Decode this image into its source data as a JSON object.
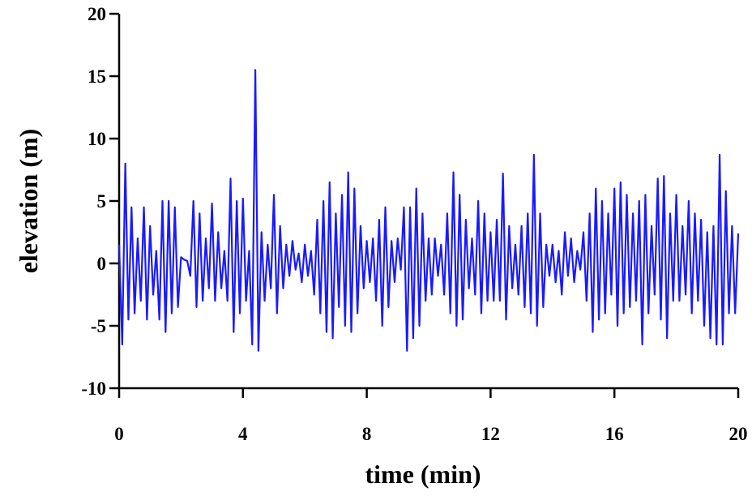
{
  "chart_data": {
    "type": "line",
    "x_label": "time (min)",
    "y_label": "elevation (m)",
    "color": "#1a1aff",
    "x": [
      0,
      0.1,
      0.2,
      0.3,
      0.4,
      0.5,
      0.6,
      0.7,
      0.8,
      0.9,
      1,
      1.1,
      1.2,
      1.3,
      1.4,
      1.5,
      1.6,
      1.7,
      1.8,
      1.9,
      2,
      2.1,
      2.2,
      2.3,
      2.4,
      2.5,
      2.6,
      2.7,
      2.8,
      2.9,
      3,
      3.1,
      3.2,
      3.3,
      3.4,
      3.5,
      3.6,
      3.7,
      3.8,
      3.9,
      4,
      4.1,
      4.2,
      4.3,
      4.4,
      4.5,
      4.6,
      4.7,
      4.8,
      4.9,
      5,
      5.1,
      5.2,
      5.3,
      5.4,
      5.5,
      5.6,
      5.7,
      5.8,
      5.9,
      6,
      6.1,
      6.2,
      6.3,
      6.4,
      6.5,
      6.6,
      6.7,
      6.8,
      6.9,
      7,
      7.1,
      7.2,
      7.3,
      7.4,
      7.5,
      7.6,
      7.7,
      7.8,
      7.9,
      8,
      8.1,
      8.2,
      8.3,
      8.4,
      8.5,
      8.6,
      8.7,
      8.8,
      8.9,
      9,
      9.1,
      9.2,
      9.3,
      9.4,
      9.5,
      9.6,
      9.7,
      9.8,
      9.9,
      10,
      10.1,
      10.2,
      10.3,
      10.4,
      10.5,
      10.6,
      10.7,
      10.8,
      10.9,
      11,
      11.1,
      11.2,
      11.3,
      11.4,
      11.5,
      11.6,
      11.7,
      11.8,
      11.9,
      12,
      12.1,
      12.2,
      12.3,
      12.4,
      12.5,
      12.6,
      12.7,
      12.8,
      12.9,
      13,
      13.1,
      13.2,
      13.3,
      13.4,
      13.5,
      13.6,
      13.7,
      13.8,
      13.9,
      14,
      14.1,
      14.2,
      14.3,
      14.4,
      14.5,
      14.6,
      14.7,
      14.8,
      14.9,
      15,
      15.1,
      15.2,
      15.3,
      15.4,
      15.5,
      15.6,
      15.7,
      15.8,
      15.9,
      16,
      16.1,
      16.2,
      16.3,
      16.4,
      16.5,
      16.6,
      16.7,
      16.8,
      16.9,
      17,
      17.1,
      17.2,
      17.3,
      17.4,
      17.5,
      17.6,
      17.7,
      17.8,
      17.9,
      18,
      18.1,
      18.2,
      18.3,
      18.4,
      18.5,
      18.6,
      18.7,
      18.8,
      18.9,
      19,
      19.1,
      19.2,
      19.3,
      19.4,
      19.5,
      19.6,
      19.7,
      19.8,
      19.9,
      20
    ],
    "values": [
      1.5,
      -6.5,
      8,
      -4.5,
      4.5,
      -4,
      2,
      -3,
      4.5,
      -4.5,
      3,
      -2.5,
      1,
      -4.5,
      5,
      -5.5,
      5,
      -4,
      4.5,
      -3.5,
      0.5,
      0.3,
      0.2,
      -1,
      5,
      -3.5,
      4,
      -3,
      2,
      -2,
      4.8,
      -3,
      2.5,
      -2,
      1,
      -3,
      6.8,
      -5.5,
      5,
      -4,
      5.2,
      -3,
      1,
      -6.5,
      15.5,
      -7,
      2.5,
      -3,
      1.5,
      -2,
      5.5,
      -4,
      3,
      -2,
      1.5,
      -1,
      1.8,
      -0.5,
      0.8,
      -1.5,
      1.5,
      -1,
      1,
      -2.5,
      3.5,
      -4,
      5,
      -5.5,
      6.5,
      -6,
      4,
      -3.5,
      5.5,
      -5,
      7.3,
      -5.5,
      6,
      -4,
      3,
      -2,
      1.8,
      -1.5,
      2,
      -3,
      3.5,
      -5,
      4.5,
      -3.5,
      1.8,
      -1.5,
      2,
      -0.5,
      4.5,
      -7,
      4.5,
      -6,
      6,
      -5,
      4,
      -3,
      2,
      -2.5,
      2,
      -1,
      1.5,
      -2.5,
      4,
      -4,
      7.3,
      -5,
      5.5,
      -4.5,
      3.5,
      -2,
      2,
      -2.5,
      5,
      -4,
      4,
      -3,
      2.5,
      -3,
      3.5,
      -3,
      7.2,
      -4.5,
      3,
      -2,
      1.5,
      -2.5,
      3,
      -3.5,
      4,
      -4,
      8.7,
      -5,
      4,
      -3.5,
      1.5,
      -1,
      1.5,
      -1.5,
      1,
      -2.5,
      2.5,
      -1,
      2,
      -1.5,
      1,
      -0.5,
      2.5,
      -3,
      4,
      -5.5,
      6,
      -4.5,
      5,
      -4,
      4,
      -2.5,
      6,
      -5,
      6.5,
      -4,
      5.5,
      -3.5,
      4,
      -3,
      5,
      -6.5,
      5.5,
      -4,
      3,
      -2.5,
      6.8,
      -4.5,
      7,
      -6,
      4,
      -3,
      5.5,
      -3,
      3,
      -2.5,
      5,
      -4,
      4,
      -3,
      3.5,
      -5,
      2.5,
      -6,
      3,
      -6.5,
      8.7,
      -6.5,
      5.8,
      -4,
      3,
      -4,
      2.4
    ],
    "xlim": [
      0,
      20
    ],
    "xticks": [
      0,
      4,
      8,
      12,
      16,
      20
    ],
    "ylim": [
      -10,
      20
    ],
    "yticks": [
      -10,
      -5,
      0,
      5,
      10,
      15,
      20
    ]
  }
}
